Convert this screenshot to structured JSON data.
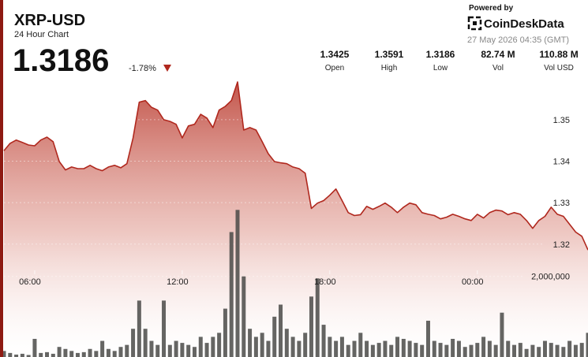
{
  "header": {
    "title": "XRP-USD",
    "subtitle": "24 Hour Chart",
    "price": "1.3186",
    "change": "-1.78%"
  },
  "branding": {
    "powered_by": "Powered by",
    "brand": "CoinDeskData",
    "timestamp": "27 May 2026 04:35 (GMT)"
  },
  "stats": [
    {
      "value": "1.3425",
      "label": "Open"
    },
    {
      "value": "1.3591",
      "label": "High"
    },
    {
      "value": "1.3186",
      "label": "Low"
    },
    {
      "value": "82.74 M",
      "label": "Vol"
    },
    {
      "value": "110.88 M",
      "label": "Vol USD"
    }
  ],
  "chart_data": {
    "type": "line",
    "categories": [
      null,
      null,
      null,
      null,
      null,
      "06:00",
      null,
      null,
      null,
      null,
      null,
      null,
      null,
      null,
      null,
      null,
      null,
      null,
      null,
      null,
      null,
      null,
      null,
      null,
      null,
      null,
      null,
      null,
      null,
      "12:00",
      null,
      null,
      null,
      null,
      null,
      null,
      null,
      null,
      null,
      null,
      null,
      null,
      null,
      null,
      null,
      null,
      null,
      null,
      null,
      null,
      null,
      null,
      null,
      "18:00",
      null,
      null,
      null,
      null,
      null,
      null,
      null,
      null,
      null,
      null,
      null,
      null,
      null,
      null,
      null,
      null,
      null,
      null,
      null,
      null,
      null,
      null,
      null,
      "00:00",
      null,
      null,
      null,
      null,
      null,
      null,
      null,
      null,
      null,
      null,
      null,
      null,
      null,
      null,
      null,
      null,
      null,
      null
    ],
    "series": [
      {
        "color": "#b0281e",
        "values": [
          1.3425,
          1.3443,
          1.3451,
          1.3445,
          1.3439,
          1.3437,
          1.3451,
          1.3458,
          1.3447,
          1.3399,
          1.3379,
          1.3386,
          1.3382,
          1.3382,
          1.339,
          1.3382,
          1.3377,
          1.3386,
          1.339,
          1.3384,
          1.3394,
          1.3456,
          1.3542,
          1.3546,
          1.353,
          1.3523,
          1.35,
          1.3496,
          1.3489,
          1.3456,
          1.3485,
          1.3489,
          1.3513,
          1.3504,
          1.3481,
          1.3523,
          1.3532,
          1.3546,
          1.3591,
          1.3475,
          1.3481,
          1.3475,
          1.3447,
          1.3418,
          1.3399,
          1.3396,
          1.3394,
          1.3386,
          1.3382,
          1.3371,
          1.3286,
          1.3299,
          1.3305,
          1.3318,
          1.3333,
          1.3305,
          1.3276,
          1.3269,
          1.3271,
          1.3291,
          1.3284,
          1.3291,
          1.3299,
          1.3289,
          1.3276,
          1.3289,
          1.3299,
          1.3295,
          1.3276,
          1.3272,
          1.3269,
          1.3261,
          1.3265,
          1.3272,
          1.3267,
          1.3261,
          1.3257,
          1.3272,
          1.3263,
          1.3276,
          1.3282,
          1.328,
          1.3271,
          1.3276,
          1.3272,
          1.3257,
          1.3238,
          1.3257,
          1.3267,
          1.3289,
          1.3272,
          1.3267,
          1.3248,
          1.3229,
          1.3219,
          1.3186
        ]
      },
      {
        "type": "bar",
        "axis": "y2",
        "color": "#4a4a48",
        "values": [
          150000,
          100000,
          60000,
          80000,
          50000,
          450000,
          100000,
          120000,
          80000,
          250000,
          200000,
          150000,
          100000,
          120000,
          200000,
          150000,
          400000,
          200000,
          150000,
          250000,
          300000,
          700000,
          1400000,
          700000,
          400000,
          300000,
          1400000,
          300000,
          400000,
          350000,
          300000,
          250000,
          500000,
          350000,
          500000,
          600000,
          1200000,
          3100000,
          3650000,
          2000000,
          700000,
          500000,
          600000,
          400000,
          1000000,
          1300000,
          700000,
          500000,
          400000,
          600000,
          1500000,
          1950000,
          800000,
          500000,
          400000,
          500000,
          300000,
          400000,
          600000,
          400000,
          300000,
          350000,
          400000,
          300000,
          500000,
          450000,
          400000,
          350000,
          300000,
          900000,
          400000,
          350000,
          300000,
          450000,
          400000,
          250000,
          300000,
          350000,
          500000,
          400000,
          300000,
          1100000,
          400000,
          300000,
          350000,
          200000,
          300000,
          250000,
          400000,
          350000,
          300000,
          250000,
          400000,
          300000,
          350000,
          600000
        ]
      }
    ],
    "ylim": [
      1.2928,
      1.3608
    ],
    "yticks": [
      1.35,
      1.34,
      1.33,
      1.32
    ],
    "y2lim": [
      0,
      7000000
    ],
    "y2ticks": [
      {
        "value": 2000000,
        "label": "2,000,000"
      }
    ],
    "grid": true
  }
}
